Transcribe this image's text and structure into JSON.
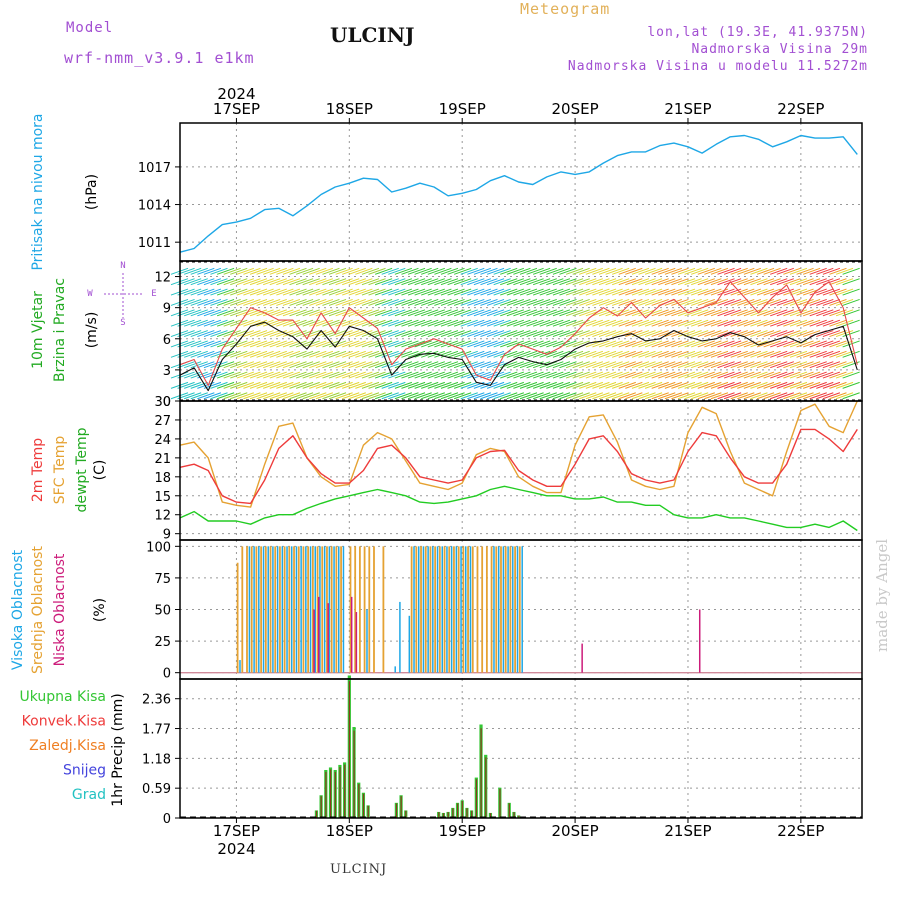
{
  "header": {
    "model_label": "Model",
    "model_name": "wrf-nmm_v3.9.1 e1km",
    "station": "ULCINJ",
    "product": "Meteogram",
    "lonlat": "lon,lat (19.3E, 41.9375N)",
    "altitude": "Nadmorska Visina 29m",
    "model_altitude": "Nadmorska Visina u modelu 11.5272m"
  },
  "footer": {
    "station": "ULCINJ",
    "credit": "made by Angel"
  },
  "colors": {
    "pressure": "#1ea7e6",
    "temp2m": "#ee3b3b",
    "sfc": "#e5a232",
    "dew": "#22cc22",
    "high": "#1ea7e6",
    "mid": "#e5a232",
    "low": "#cc1b7a",
    "total": "#34c634",
    "conv": "#ee3b3b",
    "frz": "#ef7f22",
    "snow": "#4444dd",
    "hail": "#22c2c2",
    "axis": "#000000",
    "grid": "#999999"
  },
  "chart_data": [
    {
      "id": "pressure",
      "type": "line",
      "unit": "(hPa)",
      "ylabel": "Pritisak na nivou mora",
      "ylim": [
        1009.5,
        1020.5
      ],
      "yticks": [
        1011,
        1014,
        1017
      ],
      "x_hours": [
        0,
        3,
        6,
        9,
        12,
        15,
        18,
        21,
        24,
        27,
        30,
        33,
        36,
        39,
        42,
        45,
        48,
        51,
        54,
        57,
        60,
        63,
        66,
        69,
        72,
        75,
        78,
        81,
        84,
        87,
        90,
        93,
        96,
        99,
        102,
        105,
        108,
        111,
        114,
        117,
        120,
        123,
        126,
        129,
        132,
        135,
        138,
        141,
        144
      ],
      "series": [
        {
          "values": [
            1010.2,
            1010.5,
            1011.5,
            1012.4,
            1012.6,
            1012.9,
            1013.6,
            1013.7,
            1013.1,
            1013.9,
            1014.8,
            1015.4,
            1015.7,
            1016.1,
            1016.0,
            1015.0,
            1015.3,
            1015.7,
            1015.4,
            1014.7,
            1014.9,
            1015.2,
            1015.9,
            1016.3,
            1015.8,
            1015.6,
            1016.2,
            1016.6,
            1016.4,
            1016.6,
            1017.3,
            1017.9,
            1018.2,
            1018.2,
            1018.7,
            1018.9,
            1018.6,
            1018.1,
            1018.8,
            1019.4,
            1019.5,
            1019.2,
            1018.6,
            1019.0,
            1019.5,
            1019.3,
            1019.3,
            1019.4,
            1018.0
          ]
        }
      ]
    },
    {
      "id": "wind",
      "type": "line",
      "unit": "(m/s)",
      "ylabel": [
        "10m Vjetar",
        "Brzina i Pravac"
      ],
      "compass": [
        "N",
        "E",
        "S",
        "W"
      ],
      "ylim": [
        0,
        13.5
      ],
      "yticks": [
        0,
        3,
        6,
        9,
        12
      ],
      "x_hours": [
        0,
        3,
        6,
        9,
        12,
        15,
        18,
        21,
        24,
        27,
        30,
        33,
        36,
        39,
        42,
        45,
        48,
        51,
        54,
        57,
        60,
        63,
        66,
        69,
        72,
        75,
        78,
        81,
        84,
        87,
        90,
        93,
        96,
        99,
        102,
        105,
        108,
        111,
        114,
        117,
        120,
        123,
        126,
        129,
        132,
        135,
        138,
        141,
        144
      ],
      "series": [
        {
          "values": [
            2.5,
            3.2,
            1.0,
            4.0,
            5.5,
            7.2,
            7.6,
            6.8,
            6.2,
            5.0,
            6.8,
            5.2,
            7.2,
            6.8,
            6.0,
            2.5,
            4.0,
            4.5,
            4.6,
            4.2,
            4.0,
            1.8,
            1.5,
            3.5,
            4.2,
            3.8,
            3.5,
            4.0,
            5.0,
            5.6,
            5.8,
            6.2,
            6.5,
            5.8,
            6.0,
            6.8,
            6.2,
            5.8,
            6.0,
            6.6,
            6.2,
            5.4,
            5.8,
            6.2,
            5.6,
            6.4,
            6.8,
            7.2,
            3.0
          ]
        },
        {
          "values": [
            3.5,
            4.0,
            1.5,
            5.0,
            7.0,
            9.0,
            8.5,
            7.8,
            7.8,
            6.0,
            8.5,
            6.5,
            9.0,
            8.0,
            7.0,
            3.5,
            5.0,
            5.5,
            6.0,
            5.5,
            5.0,
            2.5,
            2.0,
            4.5,
            5.5,
            5.0,
            4.5,
            5.2,
            6.5,
            8.0,
            9.0,
            8.2,
            9.5,
            8.0,
            9.2,
            9.8,
            8.5,
            9.0,
            9.5,
            11.5,
            10.0,
            8.5,
            10.0,
            11.2,
            8.5,
            10.5,
            11.5,
            9.0,
            3.5
          ]
        }
      ]
    },
    {
      "id": "temperature",
      "type": "line",
      "unit": "(C)",
      "ylabel": [
        "2m Temp",
        "SFC Temp",
        "dewpt Temp"
      ],
      "ylim": [
        8,
        30
      ],
      "yticks": [
        9,
        12,
        15,
        18,
        21,
        24,
        27,
        30
      ],
      "x_hours": [
        0,
        3,
        6,
        9,
        12,
        15,
        18,
        21,
        24,
        27,
        30,
        33,
        36,
        39,
        42,
        45,
        48,
        51,
        54,
        57,
        60,
        63,
        66,
        69,
        72,
        75,
        78,
        81,
        84,
        87,
        90,
        93,
        96,
        99,
        102,
        105,
        108,
        111,
        114,
        117,
        120,
        123,
        126,
        129,
        132,
        135,
        138,
        141,
        144
      ],
      "series": [
        {
          "name": "2m",
          "values": [
            19.5,
            20.0,
            19.0,
            15.0,
            14.0,
            13.8,
            17.5,
            22.5,
            24.5,
            21.0,
            18.5,
            17.0,
            17.0,
            19.0,
            22.5,
            23.0,
            21.0,
            18.0,
            17.5,
            17.0,
            17.5,
            21.0,
            22.0,
            22.2,
            19.0,
            17.5,
            16.5,
            16.5,
            20.0,
            24.0,
            24.5,
            22.0,
            18.5,
            17.5,
            17.0,
            17.5,
            22.0,
            25.0,
            24.5,
            21.0,
            18.0,
            17.0,
            17.0,
            20.0,
            25.5,
            25.5,
            24.0,
            22.0,
            25.5
          ]
        },
        {
          "name": "sfc",
          "values": [
            23.0,
            23.5,
            21.0,
            14.0,
            13.5,
            13.2,
            20.0,
            26.0,
            26.5,
            21.0,
            18.0,
            16.5,
            16.8,
            23.0,
            25.0,
            24.0,
            20.5,
            17.0,
            16.5,
            16.0,
            17.0,
            21.5,
            22.5,
            22.0,
            18.0,
            16.5,
            15.5,
            15.5,
            23.0,
            27.5,
            27.8,
            23.5,
            17.5,
            16.5,
            16.0,
            16.5,
            25.0,
            29.0,
            28.0,
            22.0,
            17.0,
            16.0,
            15.0,
            22.0,
            28.5,
            29.5,
            26.0,
            25.0,
            30.0
          ]
        },
        {
          "name": "dew",
          "values": [
            11.5,
            12.5,
            11.0,
            11.0,
            11.0,
            10.5,
            11.5,
            12.0,
            12.0,
            13.0,
            13.8,
            14.5,
            15.0,
            15.5,
            16.0,
            15.5,
            15.0,
            14.0,
            13.8,
            14.0,
            14.5,
            15.0,
            16.0,
            16.5,
            16.0,
            15.5,
            15.0,
            15.0,
            14.5,
            14.5,
            14.8,
            14.0,
            14.0,
            13.5,
            13.5,
            12.0,
            11.5,
            11.5,
            12.0,
            11.5,
            11.5,
            11.0,
            10.5,
            10.0,
            10.0,
            10.5,
            10.0,
            11.0,
            9.5
          ]
        }
      ]
    },
    {
      "id": "clouds",
      "type": "bar",
      "unit": "(%)",
      "ylabel": [
        "Visoka Oblacnost",
        "Srednja Oblacnost",
        "Niska Oblacnost"
      ],
      "ylim": [
        -5,
        105
      ],
      "yticks": [
        0,
        25,
        50,
        75,
        100
      ],
      "x_hours": [
        12.5,
        13.5,
        14.5,
        15.5,
        16.5,
        17.5,
        18.5,
        19.5,
        20.5,
        21.5,
        22.5,
        23.5,
        24.5,
        25.5,
        26.5,
        27.5,
        28.5,
        29.5,
        30.5,
        31.5,
        32.5,
        33.5,
        34.5,
        36.5,
        37.5,
        38.5,
        39.5,
        40.5,
        41.5,
        43.5,
        45.5,
        46.5,
        48.5,
        49.5,
        50.5,
        51.5,
        52.5,
        53.5,
        54.5,
        55.5,
        56.5,
        57.5,
        58.5,
        59.5,
        60.5,
        61.5,
        62.5,
        63.5,
        64.5,
        65.5,
        66.5,
        67.5,
        68.5,
        69.5,
        70.5,
        71.5,
        72.5,
        85.5,
        110.5
      ],
      "series": [
        {
          "name": "high",
          "values": [
            10,
            0,
            100,
            100,
            100,
            100,
            100,
            100,
            100,
            100,
            100,
            100,
            100,
            100,
            100,
            100,
            100,
            100,
            100,
            100,
            100,
            100,
            100,
            0,
            0,
            0,
            50,
            0,
            0,
            0,
            5,
            56,
            45,
            100,
            100,
            100,
            100,
            100,
            100,
            100,
            100,
            100,
            100,
            100,
            100,
            100,
            0,
            0,
            0,
            0,
            100,
            100,
            100,
            100,
            100,
            100,
            100,
            0,
            0
          ]
        },
        {
          "name": "mid",
          "values": [
            87,
            100,
            100,
            100,
            100,
            100,
            100,
            100,
            100,
            100,
            100,
            100,
            100,
            100,
            100,
            100,
            100,
            100,
            100,
            100,
            100,
            100,
            100,
            100,
            100,
            100,
            100,
            100,
            100,
            100,
            0,
            0,
            0,
            100,
            100,
            100,
            100,
            100,
            100,
            100,
            100,
            100,
            100,
            100,
            100,
            100,
            100,
            100,
            100,
            100,
            100,
            100,
            100,
            100,
            100,
            100,
            100,
            0,
            0
          ]
        },
        {
          "name": "low",
          "values": [
            0,
            0,
            0,
            0,
            0,
            0,
            0,
            0,
            0,
            0,
            0,
            0,
            0,
            0,
            0,
            0,
            50,
            60,
            0,
            55,
            0,
            0,
            0,
            60,
            48,
            0,
            0,
            0,
            0,
            0,
            0,
            0,
            0,
            0,
            0,
            0,
            0,
            0,
            0,
            0,
            0,
            0,
            0,
            0,
            0,
            0,
            0,
            0,
            0,
            0,
            0,
            0,
            0,
            0,
            0,
            0,
            0,
            23,
            50
          ]
        }
      ]
    },
    {
      "id": "precip",
      "type": "bar",
      "unit": "1hr Precip (mm)",
      "legend": [
        "Ukupna Kisa",
        "Konvek.Kisa",
        "Zaledj.Kisa",
        "Snijeg",
        "Grad"
      ],
      "ylim": [
        0,
        2.75
      ],
      "yticks": [
        0,
        0.59,
        1.18,
        1.77,
        2.36
      ],
      "x_hours": [
        29,
        30,
        31,
        32,
        33,
        34,
        35,
        36,
        37,
        38,
        39,
        40,
        46,
        47,
        48,
        55,
        56,
        57,
        58,
        59,
        60,
        61,
        62,
        63,
        64,
        65,
        66,
        67,
        68,
        70,
        71,
        72
      ],
      "series": [
        {
          "name": "total",
          "values": [
            0.15,
            0.45,
            0.95,
            1.0,
            0.95,
            1.05,
            1.1,
            2.82,
            1.8,
            0.7,
            0.5,
            0.25,
            0.3,
            0.45,
            0.15,
            0.12,
            0.1,
            0.12,
            0.2,
            0.3,
            0.35,
            0.2,
            0.15,
            0.8,
            1.85,
            1.25,
            0.1,
            0.0,
            0.6,
            0.3,
            0.12,
            0.05
          ]
        }
      ]
    }
  ],
  "xaxis": {
    "day_labels": [
      "17SEP",
      "18SEP",
      "19SEP",
      "20SEP",
      "21SEP",
      "22SEP"
    ],
    "day_hours": [
      12,
      36,
      60,
      84,
      108,
      132
    ],
    "year_label": "2024",
    "range_hours": [
      0,
      145
    ]
  }
}
